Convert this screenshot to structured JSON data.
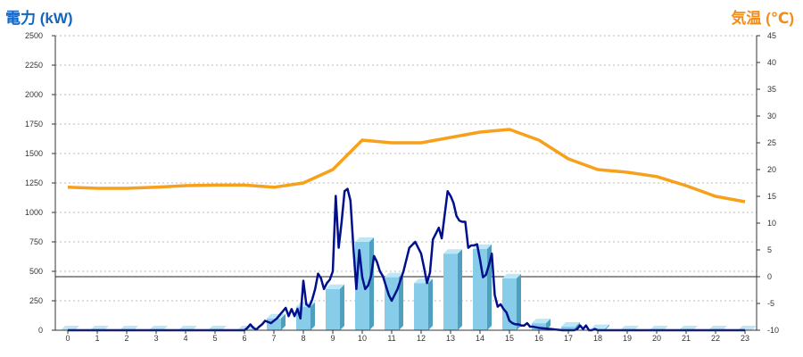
{
  "chart_data": {
    "type": "bar+line",
    "title_left": "電力 (kW)",
    "title_right": "気温 (℃)",
    "colors": {
      "title_left": "#1565c0",
      "title_right": "#f28c1b",
      "bar": "#87cdea",
      "bar_side": "#4f9fbf",
      "bar_top": "#bde6f6",
      "power_line": "#000f8c",
      "temp_line": "#f7a01b",
      "grid": "#bbbbbb"
    },
    "x_categories": [
      "0",
      "1",
      "2",
      "3",
      "4",
      "5",
      "6",
      "7",
      "8",
      "9",
      "10",
      "11",
      "12",
      "13",
      "14",
      "15",
      "16",
      "17",
      "18",
      "19",
      "20",
      "21",
      "22",
      "23"
    ],
    "y_left": {
      "ticks": [
        "0",
        "250",
        "500",
        "750",
        "1000",
        "1250",
        "1500",
        "1750",
        "2000",
        "2250",
        "2500"
      ],
      "range": [
        0,
        2500
      ]
    },
    "y_right": {
      "ticks": [
        "-10",
        "-5",
        "0",
        "5",
        "10",
        "15",
        "20",
        "25",
        "30",
        "35",
        "40",
        "45"
      ],
      "range": [
        -10,
        45
      ]
    },
    "grid": "dotted horizontal",
    "zero_line_right": 0,
    "series": [
      {
        "type": "bar",
        "axis": "left",
        "values": [
          0,
          0,
          0,
          0,
          0,
          0,
          0,
          100,
          200,
          350,
          750,
          450,
          400,
          650,
          690,
          440,
          60,
          30,
          10,
          0,
          0,
          0,
          0,
          0
        ]
      },
      {
        "type": "line",
        "axis": "left",
        "x": [
          0,
          1,
          2,
          3,
          4,
          5,
          6,
          6.1,
          6.2,
          6.3,
          6.4,
          6.5,
          6.6,
          6.7,
          6.8,
          6.9,
          7,
          7.1,
          7.2,
          7.3,
          7.4,
          7.5,
          7.6,
          7.7,
          7.8,
          7.9,
          8,
          8.1,
          8.2,
          8.3,
          8.4,
          8.5,
          8.6,
          8.7,
          8.8,
          8.9,
          9,
          9.1,
          9.2,
          9.3,
          9.4,
          9.5,
          9.6,
          9.7,
          9.8,
          9.9,
          10,
          10.1,
          10.2,
          10.3,
          10.4,
          10.5,
          10.6,
          10.7,
          10.8,
          10.9,
          11,
          11.2,
          11.4,
          11.6,
          11.8,
          12,
          12.1,
          12.2,
          12.3,
          12.4,
          12.5,
          12.6,
          12.7,
          12.8,
          12.9,
          13,
          13.1,
          13.2,
          13.3,
          13.4,
          13.5,
          13.6,
          13.7,
          13.8,
          13.9,
          14,
          14.1,
          14.2,
          14.3,
          14.4,
          14.5,
          14.6,
          14.7,
          14.8,
          14.9,
          15,
          15.1,
          15.2,
          15.3,
          15.4,
          15.5,
          15.6,
          15.7,
          15.8,
          15.9,
          16,
          16.2,
          16.4,
          16.6,
          16.8,
          17,
          17.1,
          17.2,
          17.3,
          17.4,
          17.5,
          17.6,
          17.7,
          17.8,
          17.9,
          18,
          19,
          20,
          21,
          22,
          23
        ],
        "values": [
          0,
          0,
          0,
          0,
          0,
          0,
          0,
          20,
          50,
          20,
          5,
          30,
          50,
          80,
          70,
          60,
          80,
          100,
          130,
          160,
          190,
          120,
          180,
          120,
          180,
          100,
          420,
          220,
          200,
          260,
          350,
          480,
          440,
          350,
          400,
          430,
          500,
          1140,
          700,
          920,
          1180,
          1200,
          1100,
          700,
          350,
          680,
          450,
          350,
          380,
          460,
          630,
          580,
          500,
          460,
          380,
          300,
          250,
          350,
          500,
          700,
          750,
          650,
          530,
          400,
          490,
          770,
          820,
          870,
          780,
          980,
          1180,
          1140,
          1080,
          970,
          930,
          920,
          920,
          700,
          720,
          720,
          730,
          600,
          450,
          470,
          550,
          650,
          300,
          200,
          220,
          180,
          150,
          80,
          60,
          50,
          50,
          40,
          40,
          60,
          30,
          30,
          25,
          20,
          15,
          10,
          5,
          0,
          0,
          0,
          0,
          10,
          40,
          10,
          40,
          0,
          0,
          10,
          0,
          0,
          0,
          0,
          0,
          0
        ]
      },
      {
        "type": "line",
        "axis": "right",
        "values": [
          16.7,
          16.5,
          16.5,
          16.7,
          17.0,
          17.1,
          17.1,
          16.7,
          17.5,
          20.0,
          25.5,
          25.0,
          25.0,
          26.0,
          27.0,
          27.5,
          25.5,
          22.0,
          20.0,
          19.5,
          18.7,
          17.0,
          15.0,
          14.0
        ]
      }
    ]
  }
}
